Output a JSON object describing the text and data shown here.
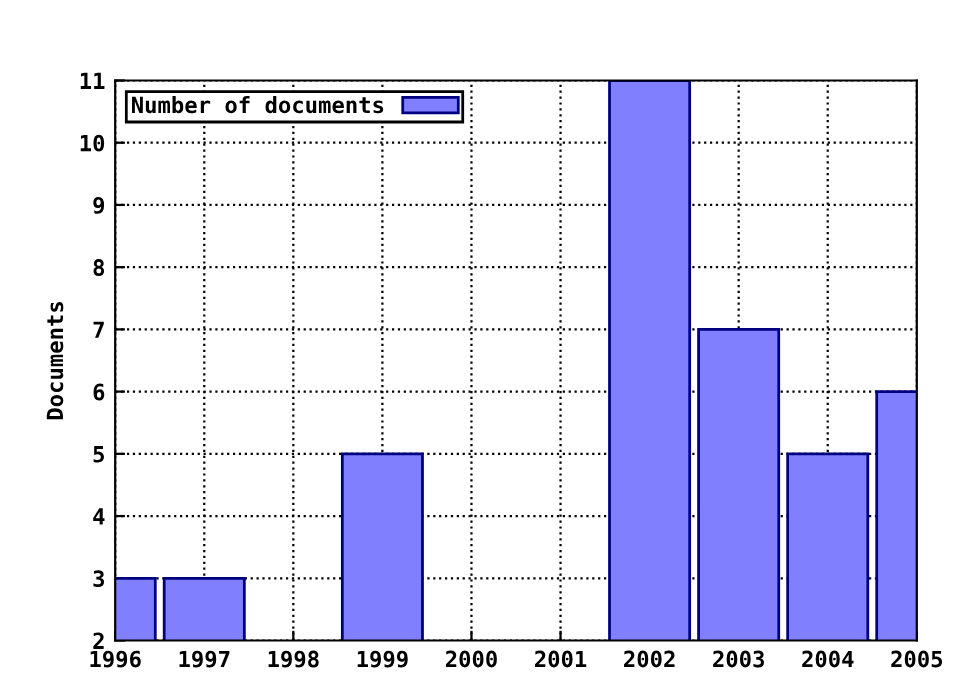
{
  "chart_data": {
    "type": "bar",
    "ylabel": "Documents",
    "x": [
      1996,
      1997,
      1998,
      1999,
      2000,
      2001,
      2002,
      2003,
      2004,
      2005
    ],
    "series": [
      {
        "name": "Number of documents",
        "color": "#8080ff",
        "values": [
          3,
          3,
          null,
          5,
          null,
          null,
          11,
          7,
          5,
          6
        ]
      }
    ],
    "xlim": [
      1996,
      2005
    ],
    "ylim": [
      2,
      11
    ],
    "xticks": [
      1996,
      1997,
      1998,
      1999,
      2000,
      2001,
      2002,
      2003,
      2004,
      2005
    ],
    "yticks": [
      2,
      3,
      4,
      5,
      6,
      7,
      8,
      9,
      10,
      11
    ],
    "grid": true,
    "legend": "top left",
    "line_style": "dotted"
  }
}
